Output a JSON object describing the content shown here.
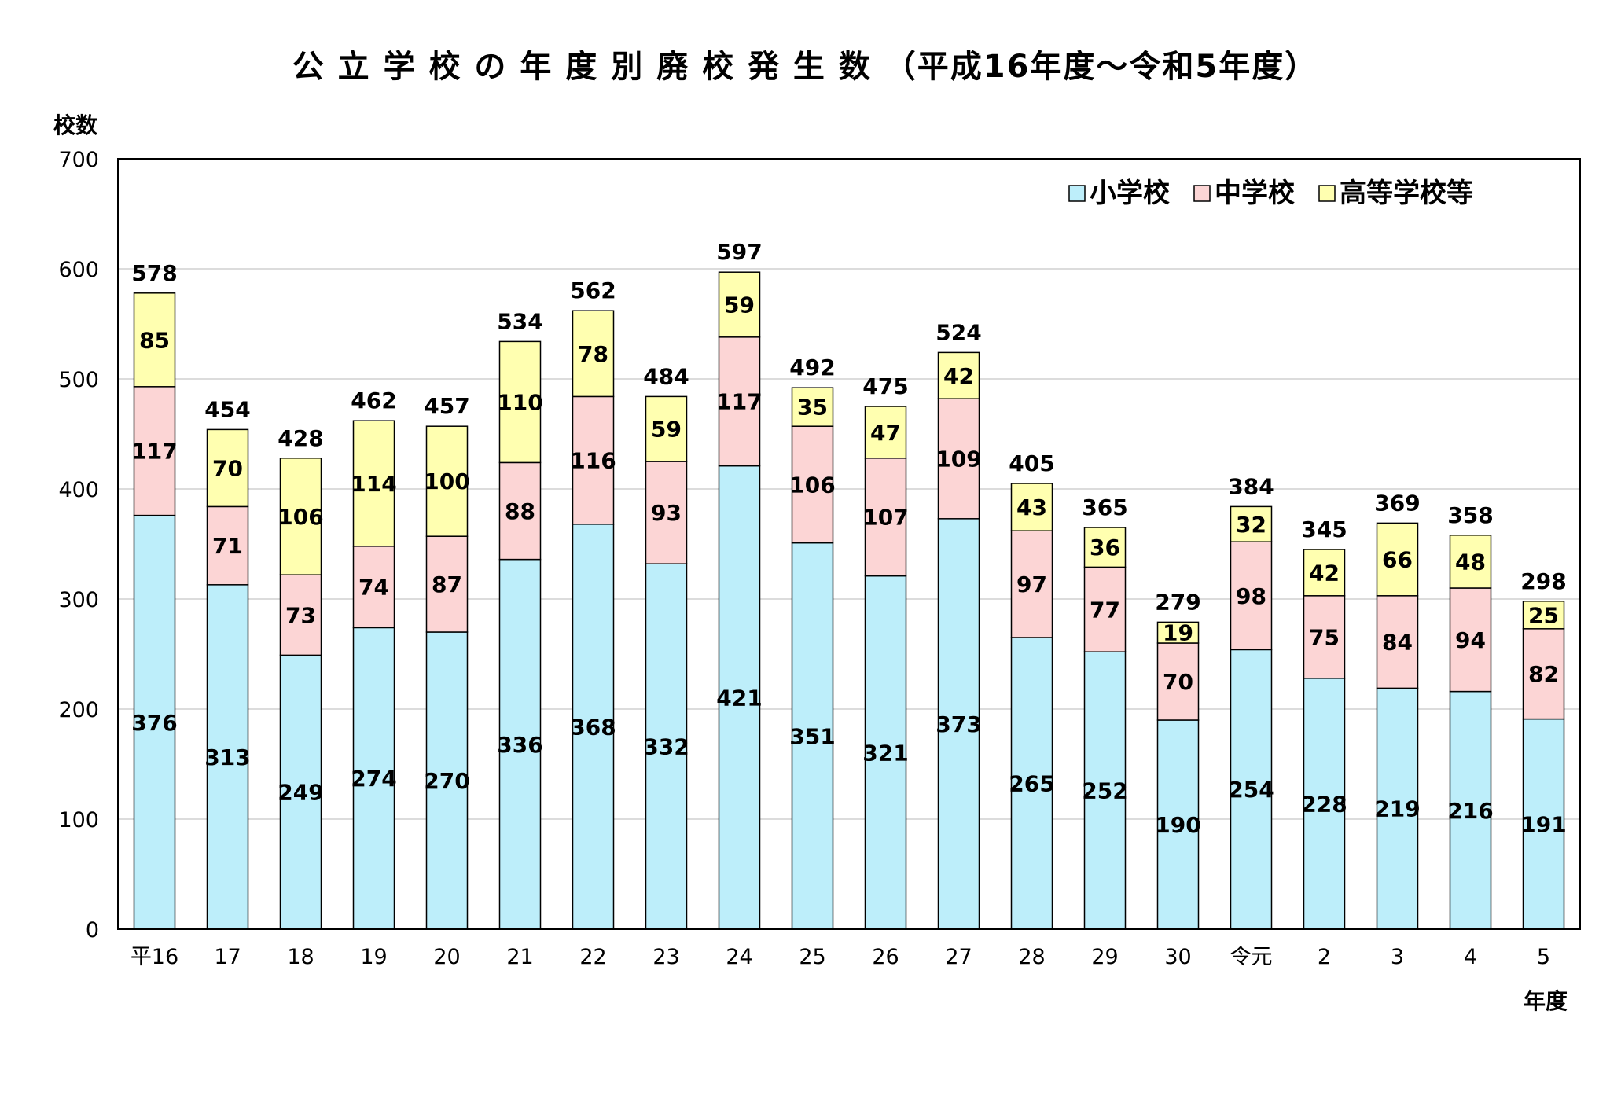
{
  "chart_data": {
    "type": "bar",
    "stacked": true,
    "title": "公 立 学 校 の 年 度 別 廃 校 発 生 数 （平成16年度～令和5年度）",
    "ylabel": "校数",
    "xlabel": "年度",
    "ylim": [
      0,
      700
    ],
    "yticks": [
      0,
      100,
      200,
      300,
      400,
      500,
      600,
      700
    ],
    "grid": true,
    "legend": "top-right",
    "categories": [
      "平16",
      "17",
      "18",
      "19",
      "20",
      "21",
      "22",
      "23",
      "24",
      "25",
      "26",
      "27",
      "28",
      "29",
      "30",
      "令元",
      "2",
      "3",
      "4",
      "5"
    ],
    "series": [
      {
        "name": "小学校",
        "color": "#bdeefa",
        "values": [
          376,
          313,
          249,
          274,
          270,
          336,
          368,
          332,
          421,
          351,
          321,
          373,
          265,
          252,
          190,
          254,
          228,
          219,
          216,
          191
        ]
      },
      {
        "name": "中学校",
        "color": "#fcd5d5",
        "values": [
          117,
          71,
          73,
          74,
          87,
          88,
          116,
          93,
          117,
          106,
          107,
          109,
          97,
          77,
          70,
          98,
          75,
          84,
          94,
          82
        ]
      },
      {
        "name": "高等学校等",
        "color": "#ffffb0",
        "values": [
          85,
          70,
          106,
          114,
          100,
          110,
          78,
          59,
          59,
          35,
          47,
          42,
          43,
          36,
          19,
          32,
          42,
          66,
          48,
          25
        ]
      }
    ],
    "totals": [
      578,
      454,
      428,
      462,
      457,
      534,
      562,
      484,
      597,
      492,
      475,
      524,
      405,
      365,
      279,
      384,
      345,
      369,
      358,
      298
    ]
  }
}
